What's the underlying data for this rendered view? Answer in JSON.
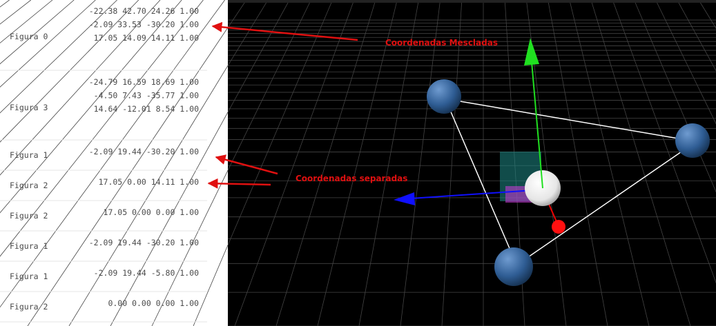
{
  "rows": [
    {
      "label": "Figura 0",
      "lines": [
        "-22.38 42.70 24.26 1.00",
        "-2.09 33.53 -30.20 1.00",
        "17.05 14.09 14.11 1.00"
      ]
    },
    {
      "label": "Figura 3",
      "lines": [
        "-24.79 16.59 18.69 1.00",
        "-4.50 7.43 -35.77 1.00",
        "14.64 -12.01 8.54 1.00"
      ]
    },
    {
      "label": "Figura 1",
      "lines": [
        "-2.09 19.44 -30.20 1.00"
      ]
    },
    {
      "label": "Figura 2",
      "lines": [
        "17.05 0.00 14.11 1.00"
      ]
    },
    {
      "label": "Figura 2",
      "lines": [
        "17.05 0.00 0.00 1.00"
      ]
    },
    {
      "label": "Figura 1",
      "lines": [
        "-2.09 19.44 -30.20 1.00"
      ]
    },
    {
      "label": "Figura 1",
      "lines": [
        "-2.09 19.44 -5.80 1.00"
      ]
    },
    {
      "label": "Figura 2",
      "lines": [
        "0.00 0.00 0.00 1.00"
      ]
    }
  ],
  "annotations": {
    "merged": "Coordenadas Mescladas",
    "separate": "Coordenadas separadas"
  }
}
